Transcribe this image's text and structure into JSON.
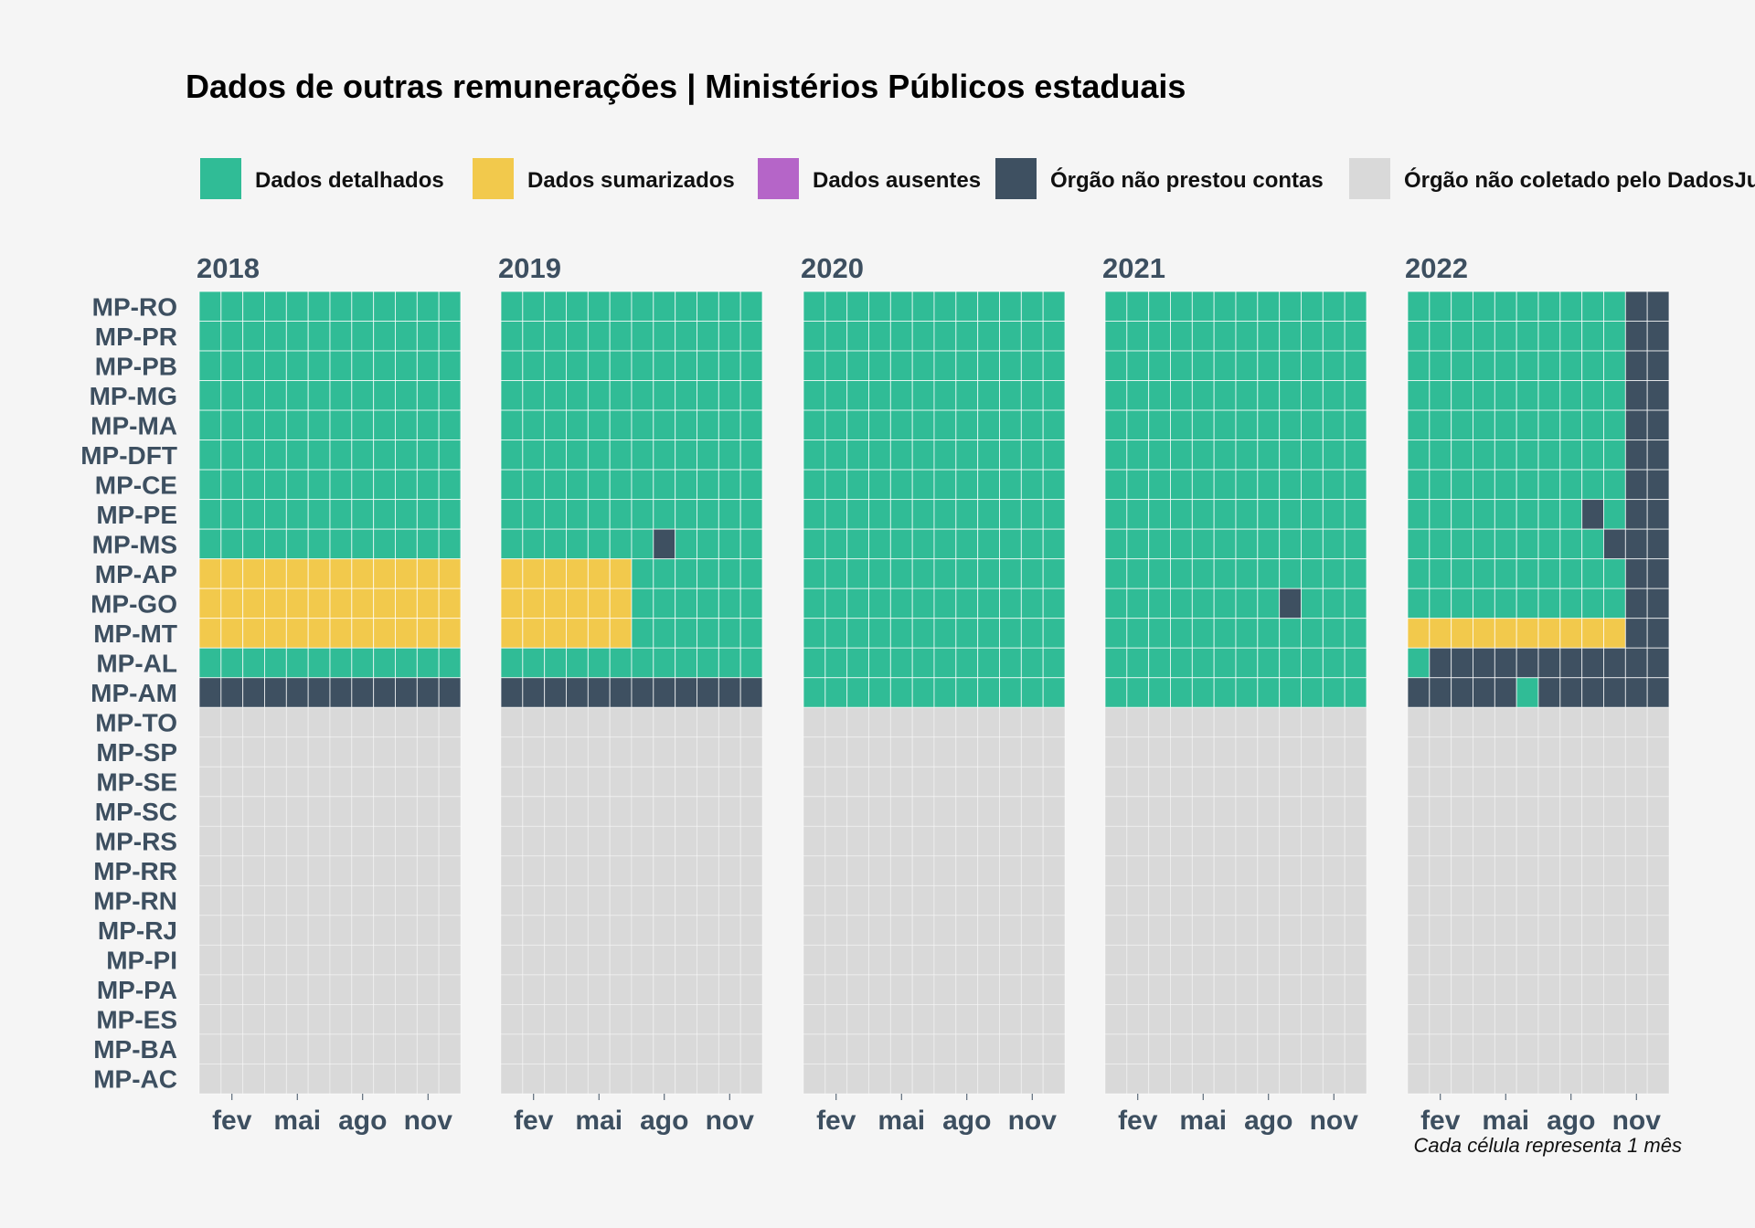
{
  "chart_data": {
    "type": "heatmap",
    "title": "Dados de outras remunerações | Ministérios Públicos estaduais",
    "caption": "Cada célula representa 1 mês",
    "legend": [
      {
        "key": "D",
        "label": "Dados detalhados",
        "color": "#30bc96"
      },
      {
        "key": "S",
        "label": "Dados sumarizados",
        "color": "#f2c94c"
      },
      {
        "key": "A",
        "label": "Dados ausentes",
        "color": "#b565c8"
      },
      {
        "key": "N",
        "label": "Órgão não prestou contas",
        "color": "#3e5061"
      },
      {
        "key": "G",
        "label": "Órgão não coletado pelo DadosJusBr",
        "color": "#d9d9d9"
      }
    ],
    "x_tick_labels": [
      {
        "month": 2,
        "label": "fev"
      },
      {
        "month": 5,
        "label": "mai"
      },
      {
        "month": 8,
        "label": "ago"
      },
      {
        "month": 11,
        "label": "nov"
      }
    ],
    "organs": [
      "MP-RO",
      "MP-PR",
      "MP-PB",
      "MP-MG",
      "MP-MA",
      "MP-DFT",
      "MP-CE",
      "MP-PE",
      "MP-MS",
      "MP-AP",
      "MP-GO",
      "MP-MT",
      "MP-AL",
      "MP-AM",
      "MP-TO",
      "MP-SP",
      "MP-SE",
      "MP-SC",
      "MP-RS",
      "MP-RR",
      "MP-RN",
      "MP-RJ",
      "MP-PI",
      "MP-PA",
      "MP-ES",
      "MP-BA",
      "MP-AC"
    ],
    "years": [
      {
        "year": "2018",
        "rows": {
          "MP-RO": "DDDDDDDDDDDD",
          "MP-PR": "DDDDDDDDDDDD",
          "MP-PB": "DDDDDDDDDDDD",
          "MP-MG": "DDDDDDDDDDDD",
          "MP-MA": "DDDDDDDDDDDD",
          "MP-DFT": "DDDDDDDDDDDD",
          "MP-CE": "DDDDDDDDDDDD",
          "MP-PE": "DDDDDDDDDDDD",
          "MP-MS": "DDDDDDDDDDDD",
          "MP-AP": "SSSSSSSSSSSS",
          "MP-GO": "SSSSSSSSSSSS",
          "MP-MT": "SSSSSSSSSSSS",
          "MP-AL": "DDDDDDDDDDDD",
          "MP-AM": "NNNNNNNNNNNN",
          "MP-TO": "GGGGGGGGGGGG",
          "MP-SP": "GGGGGGGGGGGG",
          "MP-SE": "GGGGGGGGGGGG",
          "MP-SC": "GGGGGGGGGGGG",
          "MP-RS": "GGGGGGGGGGGG",
          "MP-RR": "GGGGGGGGGGGG",
          "MP-RN": "GGGGGGGGGGGG",
          "MP-RJ": "GGGGGGGGGGGG",
          "MP-PI": "GGGGGGGGGGGG",
          "MP-PA": "GGGGGGGGGGGG",
          "MP-ES": "GGGGGGGGGGGG",
          "MP-BA": "GGGGGGGGGGGG",
          "MP-AC": "GGGGGGGGGGGG"
        }
      },
      {
        "year": "2019",
        "rows": {
          "MP-RO": "DDDDDDDDDDDD",
          "MP-PR": "DDDDDDDDDDDD",
          "MP-PB": "DDDDDDDDDDDD",
          "MP-MG": "DDDDDDDDDDDD",
          "MP-MA": "DDDDDDDDDDDD",
          "MP-DFT": "DDDDDDDDDDDD",
          "MP-CE": "DDDDDDDDDDDD",
          "MP-PE": "DDDDDDDDDDDD",
          "MP-MS": "DDDDDDDNDDDD",
          "MP-AP": "SSSSSSDDDDDD",
          "MP-GO": "SSSSSSDDDDDD",
          "MP-MT": "SSSSSSDDDDDD",
          "MP-AL": "DDDDDDDDDDDD",
          "MP-AM": "NNNNNNNNNNNN",
          "MP-TO": "GGGGGGGGGGGG",
          "MP-SP": "GGGGGGGGGGGG",
          "MP-SE": "GGGGGGGGGGGG",
          "MP-SC": "GGGGGGGGGGGG",
          "MP-RS": "GGGGGGGGGGGG",
          "MP-RR": "GGGGGGGGGGGG",
          "MP-RN": "GGGGGGGGGGGG",
          "MP-RJ": "GGGGGGGGGGGG",
          "MP-PI": "GGGGGGGGGGGG",
          "MP-PA": "GGGGGGGGGGGG",
          "MP-ES": "GGGGGGGGGGGG",
          "MP-BA": "GGGGGGGGGGGG",
          "MP-AC": "GGGGGGGGGGGG"
        }
      },
      {
        "year": "2020",
        "rows": {
          "MP-RO": "DDDDDDDDDDDD",
          "MP-PR": "DDDDDDDDDDDD",
          "MP-PB": "DDDDDDDDDDDD",
          "MP-MG": "DDDDDDDDDDDD",
          "MP-MA": "DDDDDDDDDDDD",
          "MP-DFT": "DDDDDDDDDDDD",
          "MP-CE": "DDDDDDDDDDDD",
          "MP-PE": "DDDDDDDDDDDD",
          "MP-MS": "DDDDDDDDDDDD",
          "MP-AP": "DDDDDDDDDDDD",
          "MP-GO": "DDDDDDDDDDDD",
          "MP-MT": "DDDDDDDDDDDD",
          "MP-AL": "DDDDDDDDDDDD",
          "MP-AM": "DDDDDDDDDDDD",
          "MP-TO": "GGGGGGGGGGGG",
          "MP-SP": "GGGGGGGGGGGG",
          "MP-SE": "GGGGGGGGGGGG",
          "MP-SC": "GGGGGGGGGGGG",
          "MP-RS": "GGGGGGGGGGGG",
          "MP-RR": "GGGGGGGGGGGG",
          "MP-RN": "GGGGGGGGGGGG",
          "MP-RJ": "GGGGGGGGGGGG",
          "MP-PI": "GGGGGGGGGGGG",
          "MP-PA": "GGGGGGGGGGGG",
          "MP-ES": "GGGGGGGGGGGG",
          "MP-BA": "GGGGGGGGGGGG",
          "MP-AC": "GGGGGGGGGGGG"
        }
      },
      {
        "year": "2021",
        "rows": {
          "MP-RO": "DDDDDDDDDDDD",
          "MP-PR": "DDDDDDDDDDDD",
          "MP-PB": "DDDDDDDDDDDD",
          "MP-MG": "DDDDDDDDDDDD",
          "MP-MA": "DDDDDDDDDDDD",
          "MP-DFT": "DDDDDDDDDDDD",
          "MP-CE": "DDDDDDDDDDDD",
          "MP-PE": "DDDDDDDDDDDD",
          "MP-MS": "DDDDDDDDDDDD",
          "MP-AP": "DDDDDDDDDDDD",
          "MP-GO": "DDDDDDDDNDDD",
          "MP-MT": "DDDDDDDDDDDD",
          "MP-AL": "DDDDDDDDDDDD",
          "MP-AM": "DDDDDDDDDDDD",
          "MP-TO": "GGGGGGGGGGGG",
          "MP-SP": "GGGGGGGGGGGG",
          "MP-SE": "GGGGGGGGGGGG",
          "MP-SC": "GGGGGGGGGGGG",
          "MP-RS": "GGGGGGGGGGGG",
          "MP-RR": "GGGGGGGGGGGG",
          "MP-RN": "GGGGGGGGGGGG",
          "MP-RJ": "GGGGGGGGGGGG",
          "MP-PI": "GGGGGGGGGGGG",
          "MP-PA": "GGGGGGGGGGGG",
          "MP-ES": "GGGGGGGGGGGG",
          "MP-BA": "GGGGGGGGGGGG",
          "MP-AC": "GGGGGGGGGGGG"
        }
      },
      {
        "year": "2022",
        "rows": {
          "MP-RO": "DDDDDDDDDDNN",
          "MP-PR": "DDDDDDDDDDNN",
          "MP-PB": "DDDDDDDDDDNN",
          "MP-MG": "DDDDDDDDDDNN",
          "MP-MA": "DDDDDDDDDDNN",
          "MP-DFT": "DDDDDDDDDDNN",
          "MP-CE": "DDDDDDDDDDNN",
          "MP-PE": "DDDDDDDDNDNN",
          "MP-MS": "DDDDDDDDDNNN",
          "MP-AP": "DDDDDDDDDDNN",
          "MP-GO": "DDDDDDDDDDNN",
          "MP-MT": "SSSSSSSSSSNN",
          "MP-AL": "DNNNNNNNNNNN",
          "MP-AM": "NNNNNDNNNNNN",
          "MP-TO": "GGGGGGGGGGGG",
          "MP-SP": "GGGGGGGGGGGG",
          "MP-SE": "GGGGGGGGGGGG",
          "MP-SC": "GGGGGGGGGGGG",
          "MP-RS": "GGGGGGGGGGGG",
          "MP-RR": "GGGGGGGGGGGG",
          "MP-RN": "GGGGGGGGGGGG",
          "MP-RJ": "GGGGGGGGGGGG",
          "MP-PI": "GGGGGGGGGGGG",
          "MP-PA": "GGGGGGGGGGGG",
          "MP-ES": "GGGGGGGGGGGG",
          "MP-BA": "GGGGGGGGGGGG",
          "MP-AC": "GGGGGGGGGGGG"
        }
      }
    ]
  }
}
